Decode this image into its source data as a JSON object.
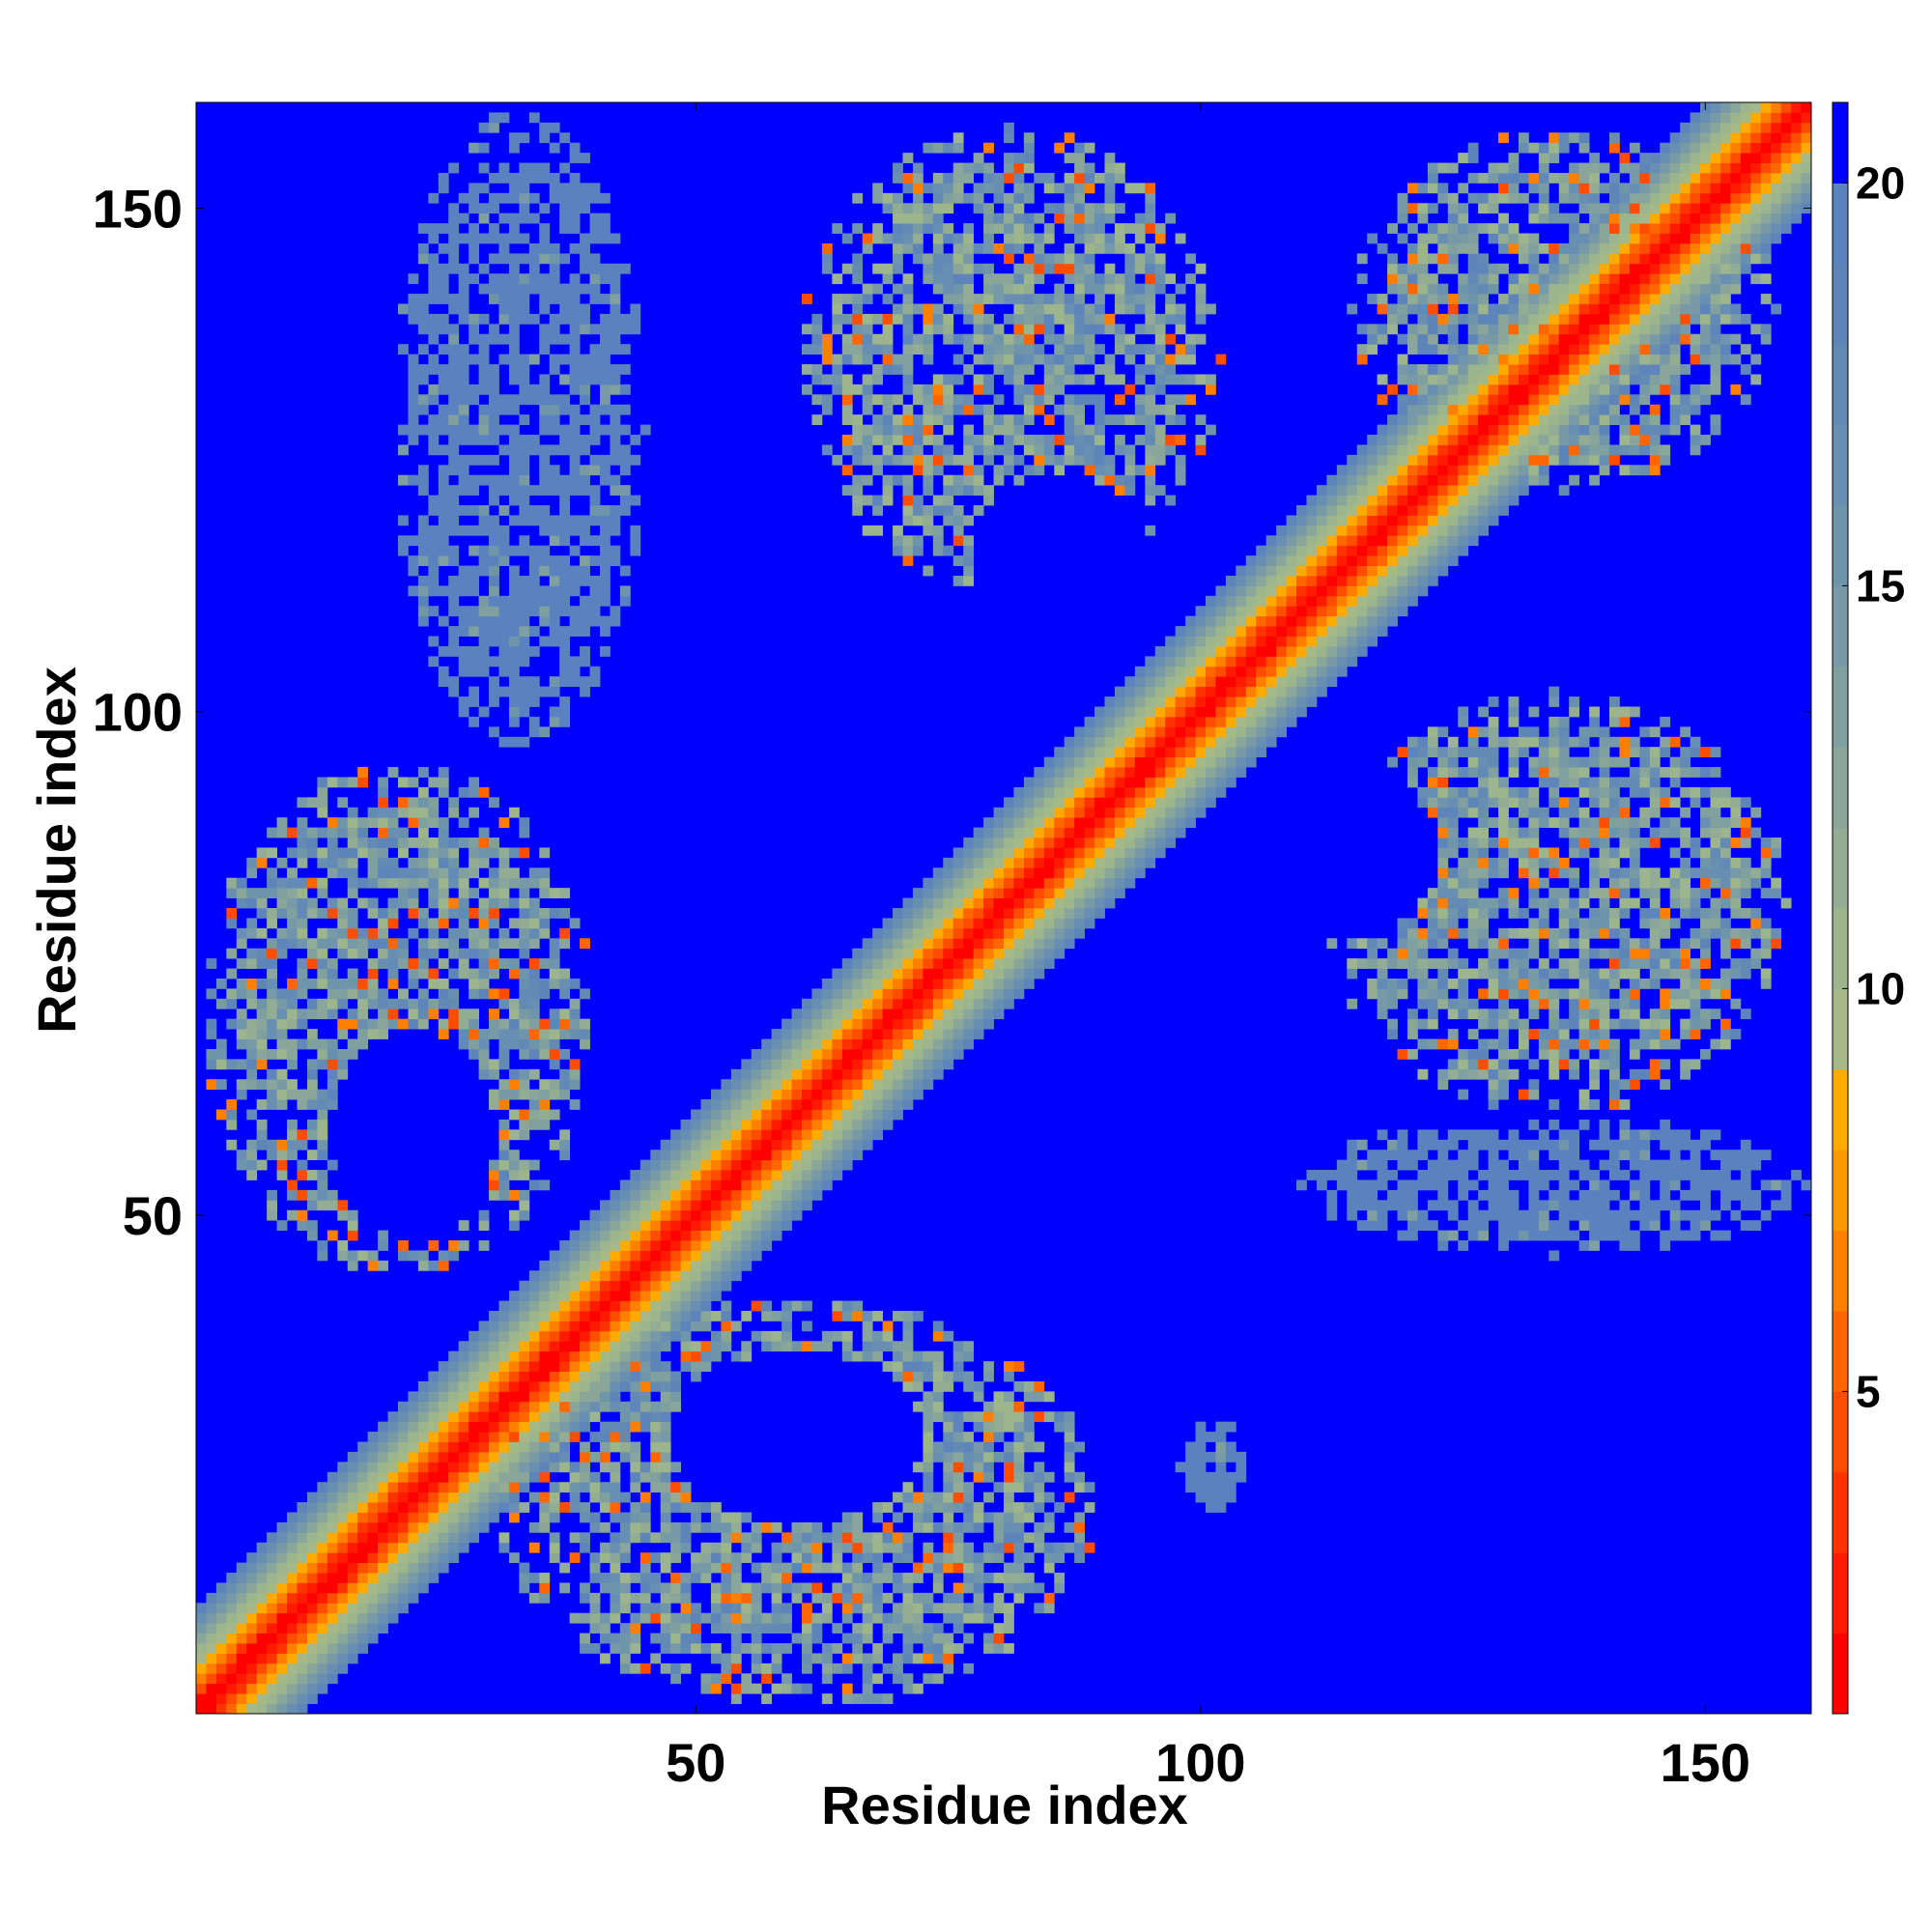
{
  "chart_data": {
    "type": "heatmap",
    "title": "",
    "xlabel": "Residue index",
    "ylabel": "Residue index",
    "n_residues": 160,
    "xlim": [
      1,
      160
    ],
    "ylim": [
      1,
      160
    ],
    "x_ticks": [
      50,
      100,
      150
    ],
    "x_tick_labels": [
      "50",
      "100",
      "150"
    ],
    "y_ticks": [
      50,
      100,
      150
    ],
    "y_tick_labels": [
      "50",
      "100",
      "150"
    ],
    "grid": false,
    "colorbar": {
      "position": "right",
      "range": [
        1,
        21
      ],
      "ticks": [
        5,
        10,
        15,
        20
      ],
      "tick_labels": [
        "5",
        "10",
        "15",
        "20"
      ],
      "levels": [
        {
          "max": 2,
          "color": "#ff0000"
        },
        {
          "max": 3,
          "color": "#ff1a00"
        },
        {
          "max": 4,
          "color": "#ff3300"
        },
        {
          "max": 5,
          "color": "#ff4d00"
        },
        {
          "max": 6,
          "color": "#ff6600"
        },
        {
          "max": 7,
          "color": "#ff8000"
        },
        {
          "max": 8,
          "color": "#ff9900"
        },
        {
          "max": 9,
          "color": "#ffaa00"
        },
        {
          "max": 10,
          "color": "#a5b888"
        },
        {
          "max": 11,
          "color": "#9cb58d"
        },
        {
          "max": 12,
          "color": "#93ac94"
        },
        {
          "max": 13,
          "color": "#8aa69a"
        },
        {
          "max": 14,
          "color": "#80a0a0"
        },
        {
          "max": 15,
          "color": "#779aa6"
        },
        {
          "max": 16,
          "color": "#6f95ab"
        },
        {
          "max": 17,
          "color": "#688fb1"
        },
        {
          "max": 18,
          "color": "#6389b5"
        },
        {
          "max": 19,
          "color": "#5e85ba"
        },
        {
          "max": 20,
          "color": "#5a82be"
        },
        {
          "max": 21,
          "color": "#0000ff"
        }
      ]
    },
    "background_value": 21,
    "diagonal_profile": [
      {
        "offset": 0,
        "value": 1
      },
      {
        "offset": 1,
        "value": 3
      },
      {
        "offset": 2,
        "value": 5
      },
      {
        "offset": 3,
        "value": 7
      },
      {
        "offset": 4,
        "value": 9
      },
      {
        "offset": 5,
        "value": 10
      },
      {
        "offset": 6,
        "value": 11
      },
      {
        "offset": 7,
        "value": 13
      },
      {
        "offset": 8,
        "value": 15
      },
      {
        "offset": 9,
        "value": 17
      },
      {
        "offset": 10,
        "value": 19
      }
    ],
    "contact_blocks": [
      {
        "i": [
          1,
          40
        ],
        "j": [
          44,
          95
        ],
        "min_value": 5,
        "max_value": 20,
        "hollow_center": [
          22,
          58
        ]
      },
      {
        "i": [
          30,
          90
        ],
        "j": [
          1,
          42
        ],
        "min_value": 5,
        "max_value": 20,
        "hollow_center": [
          60,
          28
        ]
      },
      {
        "i": [
          60,
          102
        ],
        "j": [
          112,
          158
        ],
        "min_value": 5,
        "max_value": 20,
        "hollow_center": [
          86,
          114
        ]
      },
      {
        "i": [
          112,
          158
        ],
        "j": [
          60,
          102
        ],
        "min_value": 5,
        "max_value": 20,
        "hollow_center": [
          114,
          86
        ]
      },
      {
        "i": [
          115,
          157
        ],
        "j": [
          122,
          158
        ],
        "min_value": 5,
        "max_value": 20,
        "hollow_center": null
      },
      {
        "i": [
          110,
          160
        ],
        "j": [
          46,
          60
        ],
        "min_value": 14,
        "max_value": 20,
        "hollow_center": null
      },
      {
        "i": [
          20,
          45
        ],
        "j": [
          96,
          160
        ],
        "min_value": 14,
        "max_value": 20,
        "hollow_center": null
      },
      {
        "i": [
          98,
          105
        ],
        "j": [
          20,
          30
        ],
        "min_value": 14,
        "max_value": 20,
        "hollow_center": null
      }
    ]
  }
}
